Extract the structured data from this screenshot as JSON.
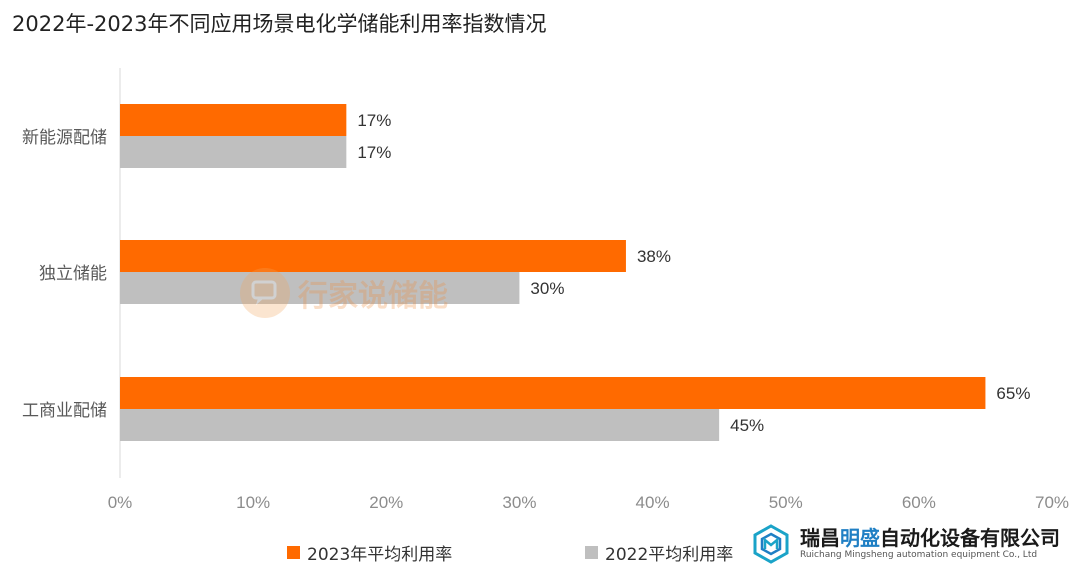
{
  "page": {
    "title": "2022年-2023年不同应用场景电化学储能利用率指数情况"
  },
  "colors": {
    "series_2023": "#ff6a00",
    "series_2022": "#bfbfbf",
    "axis_text": "#8c8c8c",
    "value_text": "#333333"
  },
  "chart_data": {
    "type": "bar",
    "orientation": "horizontal",
    "title": "2022年-2023年不同应用场景电化学储能利用率指数情况",
    "categories": [
      "新能源配储",
      "独立储能",
      "工商业配储"
    ],
    "series": [
      {
        "name": "2023年平均利用率",
        "values": [
          17,
          38,
          65
        ],
        "labels": [
          "17%",
          "38%",
          "65%"
        ]
      },
      {
        "name": "2022平均利用率",
        "values": [
          17,
          30,
          45
        ],
        "labels": [
          "17%",
          "30%",
          "45%"
        ]
      }
    ],
    "xlim": [
      0,
      70
    ],
    "x_ticks": [
      "0%",
      "10%",
      "20%",
      "30%",
      "40%",
      "50%",
      "60%",
      "70%"
    ],
    "grid": false,
    "legend_position": "bottom"
  },
  "legend": {
    "item_2023": "2023年平均利用率",
    "item_2022": "2022平均利用率"
  },
  "watermark": {
    "icon": "speech-bubble-icon",
    "text": "行家说储能"
  },
  "brand": {
    "icon": "cube-logo-icon",
    "name_pre": "瑞昌",
    "name_highlight": "明盛",
    "name_post": "自动化设备有限公司",
    "name_en": "Ruichang Mingsheng automation equipment Co., Ltd"
  }
}
